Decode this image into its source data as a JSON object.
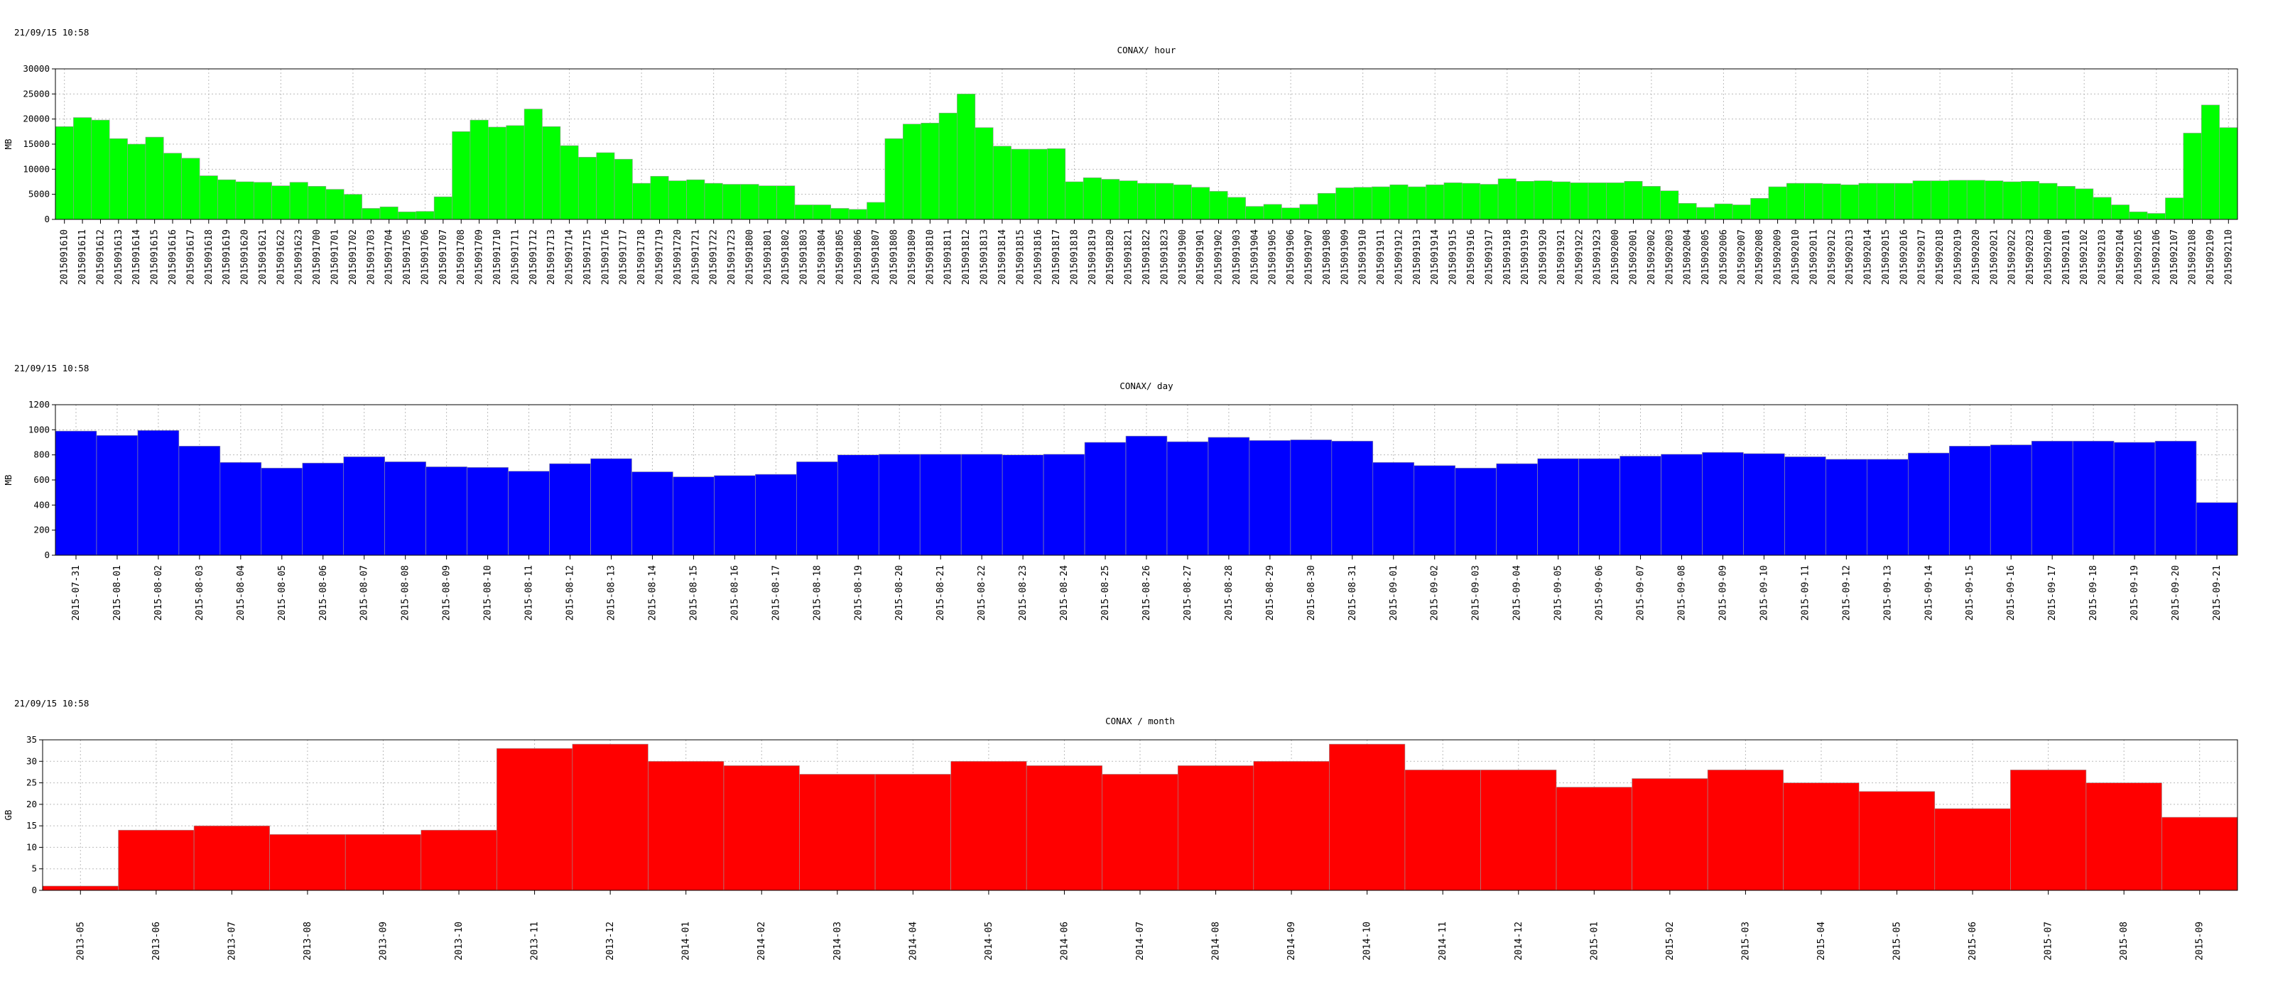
{
  "chart_data": [
    {
      "type": "bar",
      "timestamp": "21/09/15 10:58",
      "title": "CONAX/ hour",
      "ylabel": "MB",
      "ylim": [
        0,
        30000
      ],
      "yticks": [
        0,
        5000,
        10000,
        15000,
        20000,
        25000,
        30000
      ],
      "grid": true,
      "color": "#00ff00",
      "categories": [
        "2015091610",
        "2015091611",
        "2015091612",
        "2015091613",
        "2015091614",
        "2015091615",
        "2015091616",
        "2015091617",
        "2015091618",
        "2015091619",
        "2015091620",
        "2015091621",
        "2015091622",
        "2015091623",
        "2015091700",
        "2015091701",
        "2015091702",
        "2015091703",
        "2015091704",
        "2015091705",
        "2015091706",
        "2015091707",
        "2015091708",
        "2015091709",
        "2015091710",
        "2015091711",
        "2015091712",
        "2015091713",
        "2015091714",
        "2015091715",
        "2015091716",
        "2015091717",
        "2015091718",
        "2015091719",
        "2015091720",
        "2015091721",
        "2015091722",
        "2015091723",
        "2015091800",
        "2015091801",
        "2015091802",
        "2015091803",
        "2015091804",
        "2015091805",
        "2015091806",
        "2015091807",
        "2015091808",
        "2015091809",
        "2015091810",
        "2015091811",
        "2015091812",
        "2015091813",
        "2015091814",
        "2015091815",
        "2015091816",
        "2015091817",
        "2015091818",
        "2015091819",
        "2015091820",
        "2015091821",
        "2015091822",
        "2015091823",
        "2015091900",
        "2015091901",
        "2015091902",
        "2015091903",
        "2015091904",
        "2015091905",
        "2015091906",
        "2015091907",
        "2015091908",
        "2015091909",
        "2015091910",
        "2015091911",
        "2015091912",
        "2015091913",
        "2015091914",
        "2015091915",
        "2015091916",
        "2015091917",
        "2015091918",
        "2015091919",
        "2015091920",
        "2015091921",
        "2015091922",
        "2015091923",
        "2015092000",
        "2015092001",
        "2015092002",
        "2015092003",
        "2015092004",
        "2015092005",
        "2015092006",
        "2015092007",
        "2015092008",
        "2015092009",
        "2015092010",
        "2015092011",
        "2015092012",
        "2015092013",
        "2015092014",
        "2015092015",
        "2015092016",
        "2015092017",
        "2015092018",
        "2015092019",
        "2015092020",
        "2015092021",
        "2015092022",
        "2015092023",
        "2015092100",
        "2015092101",
        "2015092102",
        "2015092103",
        "2015092104",
        "2015092105",
        "2015092106",
        "2015092107",
        "2015092108",
        "2015092109",
        "2015092110"
      ],
      "values": [
        18500,
        20300,
        19800,
        16100,
        15000,
        16400,
        13200,
        12200,
        8700,
        7900,
        7500,
        7400,
        6700,
        7400,
        6600,
        6000,
        5000,
        2200,
        2500,
        1500,
        1600,
        4500,
        17500,
        19800,
        18400,
        18700,
        22000,
        18500,
        14700,
        12400,
        13300,
        12000,
        7200,
        8600,
        7700,
        7900,
        7200,
        7000,
        7000,
        6700,
        6700,
        2900,
        2900,
        2200,
        2000,
        3400,
        16100,
        19000,
        19200,
        21200,
        25000,
        18300,
        14600,
        14000,
        14000,
        14100,
        7500,
        8300,
        8000,
        7700,
        7200,
        7200,
        6900,
        6400,
        5600,
        4400,
        2600,
        3000,
        2300,
        3000,
        5200,
        6300,
        6400,
        6500,
        6900,
        6500,
        6900,
        7300,
        7200,
        7000,
        8100,
        7600,
        7700,
        7500,
        7300,
        7300,
        7300,
        7600,
        6600,
        5700,
        3200,
        2400,
        3100,
        2900,
        4200,
        6500,
        7200,
        7200,
        7100,
        6900,
        7200,
        7200,
        7200,
        7700,
        7700,
        7800,
        7800,
        7700,
        7500,
        7600,
        7200,
        6600,
        6100,
        4400,
        2900,
        1500,
        1200,
        4300,
        17200,
        22800,
        18300
      ]
    },
    {
      "type": "bar",
      "timestamp": "21/09/15 10:58",
      "title": "CONAX/ day",
      "ylabel": "MB",
      "ylim": [
        0,
        1200
      ],
      "yticks": [
        0,
        200,
        400,
        600,
        800,
        1000,
        1200
      ],
      "grid": true,
      "color": "#0000ff",
      "categories": [
        "2015-07-31",
        "2015-08-01",
        "2015-08-02",
        "2015-08-03",
        "2015-08-04",
        "2015-08-05",
        "2015-08-06",
        "2015-08-07",
        "2015-08-08",
        "2015-08-09",
        "2015-08-10",
        "2015-08-11",
        "2015-08-12",
        "2015-08-13",
        "2015-08-14",
        "2015-08-15",
        "2015-08-16",
        "2015-08-17",
        "2015-08-18",
        "2015-08-19",
        "2015-08-20",
        "2015-08-21",
        "2015-08-22",
        "2015-08-23",
        "2015-08-24",
        "2015-08-25",
        "2015-08-26",
        "2015-08-27",
        "2015-08-28",
        "2015-08-29",
        "2015-08-30",
        "2015-08-31",
        "2015-09-01",
        "2015-09-02",
        "2015-09-03",
        "2015-09-04",
        "2015-09-05",
        "2015-09-06",
        "2015-09-07",
        "2015-09-08",
        "2015-09-09",
        "2015-09-10",
        "2015-09-11",
        "2015-09-12",
        "2015-09-13",
        "2015-09-14",
        "2015-09-15",
        "2015-09-16",
        "2015-09-17",
        "2015-09-18",
        "2015-09-19",
        "2015-09-20",
        "2015-09-21"
      ],
      "values": [
        990,
        955,
        995,
        870,
        740,
        695,
        735,
        785,
        745,
        705,
        700,
        670,
        730,
        770,
        665,
        625,
        635,
        645,
        745,
        800,
        805,
        805,
        805,
        800,
        805,
        900,
        950,
        905,
        940,
        915,
        920,
        910,
        740,
        715,
        695,
        730,
        770,
        770,
        790,
        805,
        820,
        810,
        785,
        765,
        765,
        815,
        870,
        880,
        910,
        910,
        900,
        910,
        420
      ]
    },
    {
      "type": "bar",
      "timestamp": "21/09/15 10:58",
      "title": "CONAX / month",
      "ylabel": "GB",
      "ylim": [
        0,
        35
      ],
      "yticks": [
        0,
        5,
        10,
        15,
        20,
        25,
        30,
        35
      ],
      "grid": true,
      "color": "#ff0000",
      "categories": [
        "2013-05",
        "2013-06",
        "2013-07",
        "2013-08",
        "2013-09",
        "2013-10",
        "2013-11",
        "2013-12",
        "2014-01",
        "2014-02",
        "2014-03",
        "2014-04",
        "2014-05",
        "2014-06",
        "2014-07",
        "2014-08",
        "2014-09",
        "2014-10",
        "2014-11",
        "2014-12",
        "2015-01",
        "2015-02",
        "2015-03",
        "2015-04",
        "2015-05",
        "2015-06",
        "2015-07",
        "2015-08",
        "2015-09"
      ],
      "values": [
        1,
        14,
        15,
        13,
        13,
        14,
        33,
        34,
        30,
        29,
        27,
        27,
        30,
        29,
        27,
        29,
        30,
        34,
        28,
        28,
        24,
        26,
        28,
        25,
        23,
        19,
        28,
        25,
        17
      ]
    }
  ]
}
